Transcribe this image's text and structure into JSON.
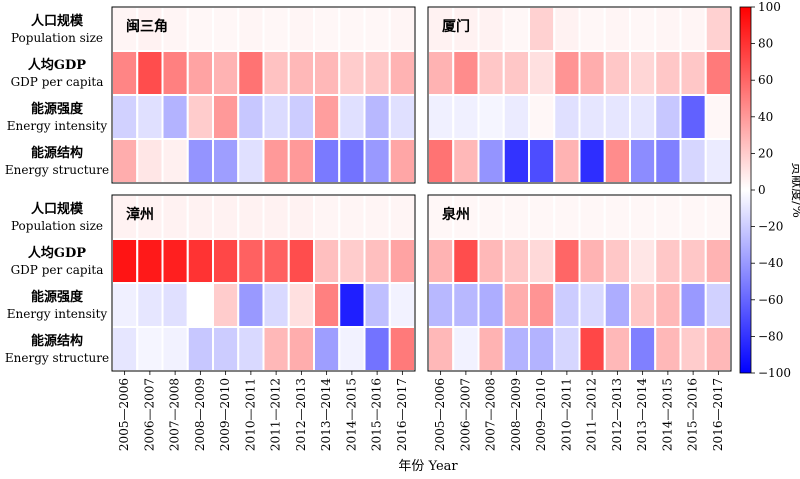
{
  "chart_data": {
    "type": "heatmap",
    "x_title": "年份 Year",
    "colorbar": {
      "label": "贡献度/%",
      "min": -100,
      "max": 100,
      "ticks": [
        "100",
        "80",
        "60",
        "40",
        "20",
        "0",
        "−20",
        "−40",
        "−60",
        "−80",
        "−100"
      ]
    },
    "periods": [
      "2005—2006",
      "2006—2007",
      "2007—2008",
      "2008—2009",
      "2009—2010",
      "2010—2011",
      "2011—2012",
      "2012—2013",
      "2013—2014",
      "2014—2015",
      "2015—2016",
      "2016—2017"
    ],
    "factors": [
      {
        "cn": "人口规模",
        "en": "Population size"
      },
      {
        "cn": "人均GDP",
        "en": "GDP per capita"
      },
      {
        "cn": "能源强度",
        "en": "Energy intensity"
      },
      {
        "cn": "能源结构",
        "en": "Energy structure"
      }
    ],
    "panels": [
      {
        "name": "闽三角",
        "values": [
          [
            4,
            5,
            4,
            3,
            3,
            4,
            3,
            4,
            3,
            3,
            3,
            4
          ],
          [
            48,
            70,
            50,
            36,
            30,
            55,
            24,
            28,
            28,
            20,
            22,
            30
          ],
          [
            -18,
            -12,
            -30,
            20,
            40,
            -22,
            -14,
            -20,
            38,
            -12,
            -28,
            -12
          ],
          [
            32,
            10,
            6,
            -42,
            -38,
            -12,
            40,
            40,
            -52,
            -55,
            -40,
            35
          ]
        ]
      },
      {
        "name": "厦门",
        "values": [
          [
            5,
            5,
            5,
            3,
            18,
            5,
            3,
            4,
            3,
            4,
            4,
            18
          ],
          [
            30,
            45,
            22,
            22,
            12,
            42,
            32,
            22,
            16,
            22,
            22,
            52
          ],
          [
            -6,
            -6,
            -4,
            -8,
            3,
            -12,
            -10,
            -10,
            -10,
            -22,
            -62,
            3
          ],
          [
            55,
            28,
            -42,
            -80,
            -70,
            30,
            -82,
            45,
            -45,
            -50,
            -16,
            -8
          ]
        ]
      },
      {
        "name": "漳州",
        "values": [
          [
            5,
            5,
            5,
            5,
            5,
            5,
            5,
            5,
            4,
            4,
            4,
            4
          ],
          [
            92,
            90,
            88,
            80,
            72,
            62,
            62,
            70,
            25,
            20,
            25,
            36
          ],
          [
            -6,
            -10,
            -12,
            0,
            20,
            -40,
            -15,
            12,
            50,
            -88,
            -25,
            -5
          ],
          [
            -10,
            -4,
            -5,
            -22,
            -20,
            -15,
            28,
            32,
            -38,
            -5,
            -55,
            52
          ]
        ]
      },
      {
        "name": "泉州",
        "values": [
          [
            3,
            3,
            3,
            3,
            3,
            3,
            3,
            3,
            3,
            3,
            3,
            3
          ],
          [
            30,
            70,
            28,
            22,
            15,
            60,
            30,
            22,
            10,
            22,
            22,
            30
          ],
          [
            -28,
            -28,
            -32,
            32,
            42,
            -20,
            -15,
            -32,
            22,
            28,
            -40,
            -18
          ],
          [
            28,
            -5,
            30,
            -30,
            -30,
            -16,
            72,
            28,
            -50,
            28,
            20,
            28
          ]
        ]
      }
    ]
  }
}
